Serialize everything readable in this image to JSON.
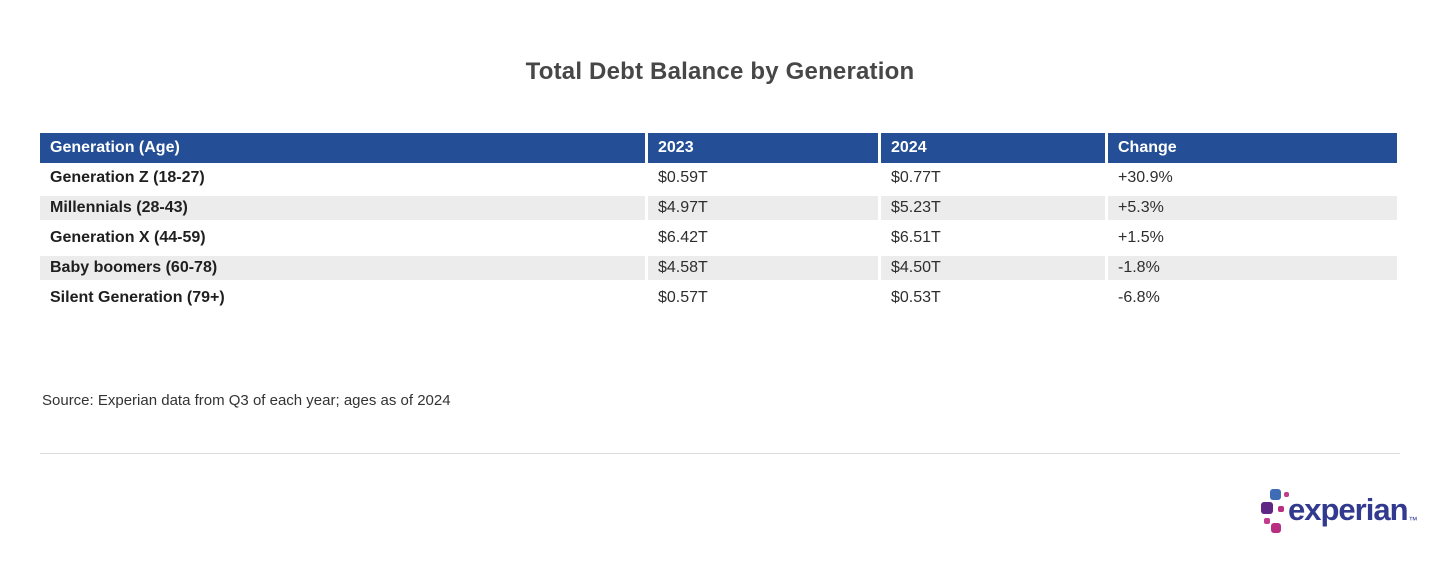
{
  "page": {
    "title": "Total Debt Balance by Generation",
    "source_note": "Source: Experian data from Q3 of each year; ages as of 2024"
  },
  "table": {
    "columns": [
      "Generation (Age)",
      "2023",
      "2024",
      "Change"
    ],
    "rows": [
      {
        "generation": "Generation Z (18-27)",
        "y2023": "$0.59T",
        "y2024": "$0.77T",
        "change": "+30.9%"
      },
      {
        "generation": "Millennials (28-43)",
        "y2023": "$4.97T",
        "y2024": "$5.23T",
        "change": "+5.3%"
      },
      {
        "generation": "Generation X (44-59)",
        "y2023": "$6.42T",
        "y2024": "$6.51T",
        "change": "+1.5%"
      },
      {
        "generation": "Baby boomers (60-78)",
        "y2023": "$4.58T",
        "y2024": "$4.50T",
        "change": "-1.8%"
      },
      {
        "generation": "Silent Generation (79+)",
        "y2023": "$0.57T",
        "y2024": "$0.53T",
        "change": "-6.8%"
      }
    ]
  },
  "branding": {
    "logo_text": "experian",
    "trademark": "™"
  },
  "colors": {
    "header_bg": "#244E95",
    "row_stripe": "#ECECEC",
    "title_text": "#474747",
    "body_text": "#2E2E2E",
    "logo_indigo": "#313A8F",
    "logo_blue": "#3E6DB5",
    "logo_purple": "#5F2683",
    "logo_magenta": "#B82E80"
  }
}
